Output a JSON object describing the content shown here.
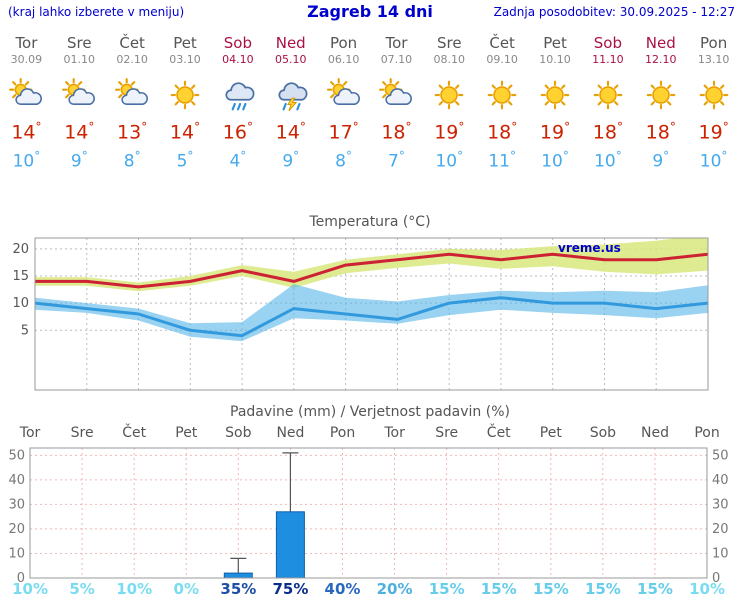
{
  "header": {
    "hint": "(kraj lahko izberete v meniju)",
    "title": "Zagreb 14 dni",
    "last_update": "Zadnja posodobitev: 30.09.2025 - 12:27"
  },
  "degree": "°",
  "colors": {
    "accent_blue": "#0000cc",
    "weekday": "#555555",
    "weekend": "#aa1144",
    "temp_high_text": "#cc2200",
    "temp_low_text": "#44aaee",
    "red_line": "#cc2233",
    "blue_line": "#3399dd",
    "green_band": "#d9e87d",
    "blue_band": "#55b5e8",
    "bar_fill": "#1e8fe0",
    "bar_stroke": "#0f5fa8",
    "grid_temp": "#bbbbbb",
    "grid_precip": "#f0b8b8",
    "chart_border": "#999999"
  },
  "forecast": {
    "days": [
      {
        "name": "Tor",
        "date": "30.09",
        "weekend": false,
        "icon": "sun-cloud",
        "high": 14,
        "low": 10
      },
      {
        "name": "Sre",
        "date": "01.10",
        "weekend": false,
        "icon": "sun-cloud",
        "high": 14,
        "low": 9
      },
      {
        "name": "Čet",
        "date": "02.10",
        "weekend": false,
        "icon": "sun-cloud",
        "high": 13,
        "low": 8
      },
      {
        "name": "Pet",
        "date": "03.10",
        "weekend": false,
        "icon": "sun",
        "high": 14,
        "low": 5
      },
      {
        "name": "Sob",
        "date": "04.10",
        "weekend": true,
        "icon": "rain",
        "high": 16,
        "low": 4
      },
      {
        "name": "Ned",
        "date": "05.10",
        "weekend": true,
        "icon": "storm",
        "high": 14,
        "low": 9
      },
      {
        "name": "Pon",
        "date": "06.10",
        "weekend": false,
        "icon": "sun-cloud",
        "high": 17,
        "low": 8
      },
      {
        "name": "Tor",
        "date": "07.10",
        "weekend": false,
        "icon": "sun-cloud",
        "high": 18,
        "low": 7
      },
      {
        "name": "Sre",
        "date": "08.10",
        "weekend": false,
        "icon": "sun",
        "high": 19,
        "low": 10
      },
      {
        "name": "Čet",
        "date": "09.10",
        "weekend": false,
        "icon": "sun",
        "high": 18,
        "low": 11
      },
      {
        "name": "Pet",
        "date": "10.10",
        "weekend": false,
        "icon": "sun",
        "high": 19,
        "low": 10
      },
      {
        "name": "Sob",
        "date": "11.10",
        "weekend": true,
        "icon": "sun",
        "high": 18,
        "low": 10
      },
      {
        "name": "Ned",
        "date": "12.10",
        "weekend": true,
        "icon": "sun",
        "high": 18,
        "low": 9
      },
      {
        "name": "Pon",
        "date": "13.10",
        "weekend": false,
        "icon": "sun",
        "high": 19,
        "low": 10
      }
    ]
  },
  "chart_data": [
    {
      "type": "line",
      "title": "Temperatura (°C)",
      "watermark": "vreme.us",
      "categories": [
        "Tor",
        "Sre",
        "Čet",
        "Pet",
        "Sob",
        "Ned",
        "Pon",
        "Tor",
        "Sre",
        "Čet",
        "Pet",
        "Sob",
        "Ned",
        "Pon"
      ],
      "ylim": [
        -6,
        22
      ],
      "yticks": [
        5,
        10,
        15,
        20
      ],
      "grid": true,
      "legend": "none",
      "series": [
        {
          "name": "max-temp",
          "color": "#cc2233",
          "values": [
            14,
            14,
            13,
            14,
            16,
            14,
            17,
            18,
            19,
            18,
            19,
            18,
            18,
            19
          ]
        },
        {
          "name": "min-temp",
          "color": "#3399dd",
          "values": [
            10,
            9,
            8,
            5,
            4,
            9,
            8,
            7,
            10,
            11,
            10,
            10,
            9,
            10
          ]
        }
      ],
      "bands": [
        {
          "name": "max-range",
          "color": "#d9e87d",
          "opacity": 0.85,
          "upper": [
            14.8,
            14.8,
            13.8,
            15,
            17,
            15.8,
            18,
            19,
            20,
            19.8,
            20.5,
            20.8,
            21.5,
            22.8
          ],
          "lower": [
            13.2,
            13.2,
            12.2,
            13.2,
            15,
            12.8,
            15.5,
            16.5,
            17.3,
            16.3,
            16.8,
            15.8,
            15.3,
            16
          ]
        },
        {
          "name": "min-range",
          "color": "#55b5e8",
          "opacity": 0.6,
          "upper": [
            11,
            10,
            9,
            6.3,
            6.5,
            13.5,
            11,
            10.3,
            11.5,
            12.3,
            12,
            12.3,
            12,
            13.3
          ],
          "lower": [
            8.8,
            8.2,
            6.8,
            3.8,
            3,
            7.2,
            6.8,
            6.2,
            7.8,
            8.8,
            8.2,
            7.8,
            7.2,
            8.2
          ]
        }
      ]
    },
    {
      "type": "bar",
      "title": "Padavine (mm) / Verjetnost padavin (%)",
      "categories": [
        "Tor",
        "Sre",
        "Čet",
        "Pet",
        "Sob",
        "Ned",
        "Pon",
        "Tor",
        "Sre",
        "Čet",
        "Pet",
        "Sob",
        "Ned",
        "Pon"
      ],
      "weekend_indexes": [
        4,
        5,
        11,
        12
      ],
      "ylim": [
        0,
        53
      ],
      "yticks": [
        0,
        10,
        20,
        30,
        40,
        50
      ],
      "values": [
        0,
        0,
        0,
        0,
        2,
        27,
        0,
        0,
        0,
        0,
        0,
        0,
        0,
        0
      ],
      "whisker_max": [
        null,
        null,
        null,
        null,
        8,
        51,
        null,
        null,
        null,
        null,
        null,
        null,
        null,
        null
      ],
      "probabilities": [
        {
          "label": "10%",
          "color": "#7adcf0"
        },
        {
          "label": "5%",
          "color": "#7adcf0"
        },
        {
          "label": "10%",
          "color": "#7adcf0"
        },
        {
          "label": "0%",
          "color": "#7adcf0"
        },
        {
          "label": "35%",
          "color": "#1d4fa6"
        },
        {
          "label": "75%",
          "color": "#0b2e8c"
        },
        {
          "label": "40%",
          "color": "#2a68c0"
        },
        {
          "label": "20%",
          "color": "#4fb0de"
        },
        {
          "label": "15%",
          "color": "#66cdea"
        },
        {
          "label": "15%",
          "color": "#66cdea"
        },
        {
          "label": "15%",
          "color": "#66cdea"
        },
        {
          "label": "15%",
          "color": "#66cdea"
        },
        {
          "label": "15%",
          "color": "#66cdea"
        },
        {
          "label": "10%",
          "color": "#7adcf0"
        }
      ]
    }
  ]
}
